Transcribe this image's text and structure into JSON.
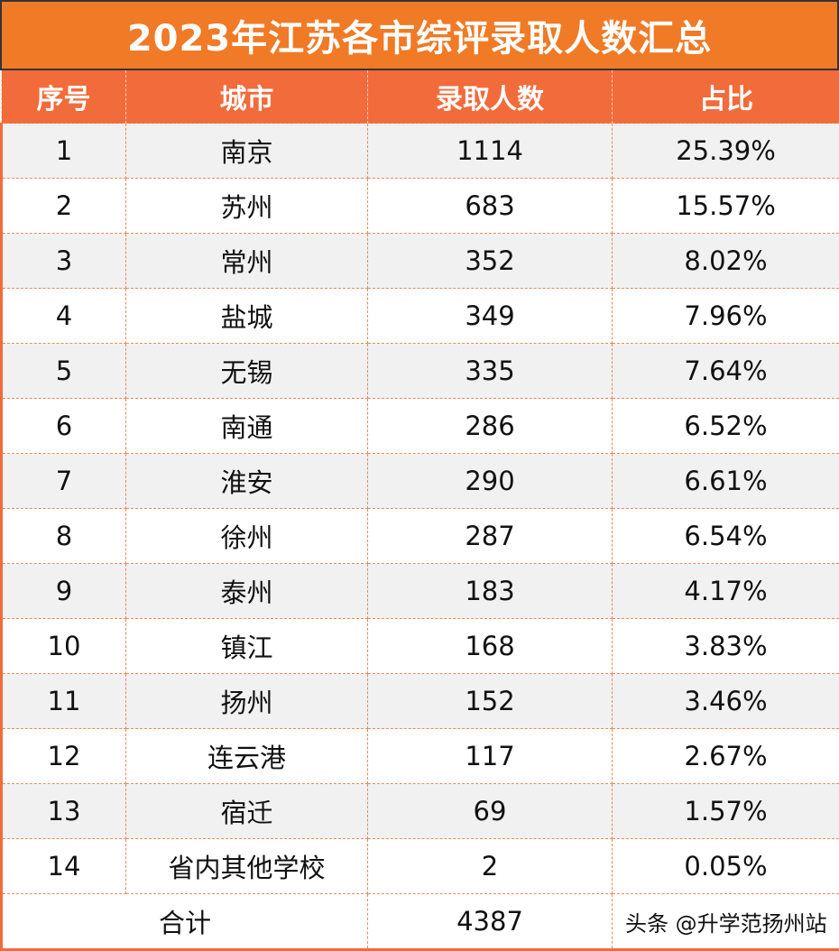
{
  "title": "2023年江苏各市综评录取人数汇总",
  "headers": [
    "序号",
    "城市",
    "录取人数",
    "占比"
  ],
  "rows": [
    {
      "no": "1",
      "city": "南京",
      "count": "1114",
      "ratio": "25.39%"
    },
    {
      "no": "2",
      "city": "苏州",
      "count": "683",
      "ratio": "15.57%"
    },
    {
      "no": "3",
      "city": "常州",
      "count": "352",
      "ratio": "8.02%"
    },
    {
      "no": "4",
      "city": "盐城",
      "count": "349",
      "ratio": "7.96%"
    },
    {
      "no": "5",
      "city": "无锡",
      "count": "335",
      "ratio": "7.64%"
    },
    {
      "no": "6",
      "city": "南通",
      "count": "286",
      "ratio": "6.52%"
    },
    {
      "no": "7",
      "city": "淮安",
      "count": "290",
      "ratio": "6.61%"
    },
    {
      "no": "8",
      "city": "徐州",
      "count": "287",
      "ratio": "6.54%"
    },
    {
      "no": "9",
      "city": "泰州",
      "count": "183",
      "ratio": "4.17%"
    },
    {
      "no": "10",
      "city": "镇江",
      "count": "168",
      "ratio": "3.83%"
    },
    {
      "no": "11",
      "city": "扬州",
      "count": "152",
      "ratio": "3.46%"
    },
    {
      "no": "12",
      "city": "连云港",
      "count": "117",
      "ratio": "2.67%"
    },
    {
      "no": "13",
      "city": "宿迁",
      "count": "69",
      "ratio": "1.57%"
    },
    {
      "no": "14",
      "city": "省内其他学校",
      "count": "2",
      "ratio": "0.05%"
    }
  ],
  "total": {
    "label": "合计",
    "count": "4387"
  },
  "watermark": "头条 @升学范扬州站",
  "colors": {
    "title_bg": "#f07a26",
    "header_bg": "#f26b3a",
    "stripe": "#f1f1f1"
  }
}
